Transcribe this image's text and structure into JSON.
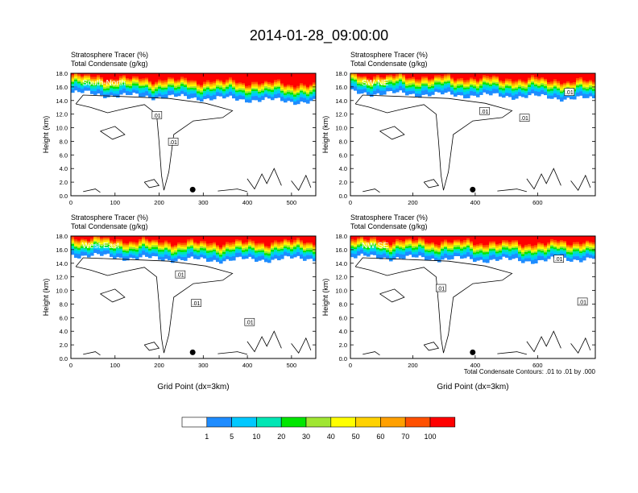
{
  "page_title": "2014-01-28_09:00:00",
  "footnote": "Total Condensate Contours: .01 to .01 by .000",
  "colorbar": {
    "colors": [
      "#ffffff",
      "#1e8cff",
      "#00c8ff",
      "#00e6b4",
      "#00e600",
      "#a0e632",
      "#ffff00",
      "#ffd200",
      "#ffa000",
      "#ff5000",
      "#ff0000"
    ],
    "labels": [
      "1",
      "5",
      "10",
      "20",
      "30",
      "40",
      "50",
      "60",
      "70",
      "100"
    ]
  },
  "chart_data": [
    {
      "type": "heatmap",
      "title_line1": "Stratosphere Tracer   (%)",
      "title_line2": "Total Condensate   (g/kg)",
      "section_label": "South-North",
      "ylabel": "Height (km)",
      "xlabel": "",
      "xlim": [
        0,
        555
      ],
      "ylim": [
        0,
        18
      ],
      "x_ticks": [
        "0",
        "100",
        "200",
        "300",
        "400",
        "500"
      ],
      "x_tick_values": [
        0,
        100,
        200,
        300,
        400,
        500
      ],
      "y_ticks": [
        "0.0",
        "2.0",
        "4.0",
        "6.0",
        "8.0",
        "10.0",
        "12.0",
        "14.0",
        "16.0",
        "18.0"
      ],
      "y_tick_values": [
        0,
        2,
        4,
        6,
        8,
        10,
        12,
        14,
        16,
        18
      ],
      "contour_labels": [
        ".01",
        ".01"
      ],
      "contour_label_positions": [
        [
          195,
          11.8
        ],
        [
          232,
          7.9
        ]
      ],
      "marker_point": [
        276,
        0.9
      ],
      "tracer_base_km": [
        [
          0,
          15.2
        ],
        [
          100,
          14.8
        ],
        [
          200,
          14.6
        ],
        [
          300,
          14.4
        ],
        [
          400,
          14.2
        ],
        [
          555,
          13.8
        ]
      ]
    },
    {
      "type": "heatmap",
      "title_line1": "Stratosphere Tracer   (%)",
      "title_line2": "Total Condensate   (g/kg)",
      "section_label": "SW-NE",
      "ylabel": "Height (km)",
      "xlabel": "",
      "xlim": [
        0,
        785
      ],
      "ylim": [
        0,
        18
      ],
      "x_ticks": [
        "0",
        "200",
        "400",
        "600"
      ],
      "x_tick_values": [
        0,
        200,
        400,
        600
      ],
      "y_ticks": [
        "0.0",
        "2.0",
        "4.0",
        "6.0",
        "8.0",
        "10.0",
        "12.0",
        "14.0",
        "16.0",
        "18.0"
      ],
      "y_tick_values": [
        0,
        2,
        4,
        6,
        8,
        10,
        12,
        14,
        16,
        18
      ],
      "contour_labels": [
        ".01",
        ".01",
        ".01"
      ],
      "contour_label_positions": [
        [
          430,
          12.4
        ],
        [
          558,
          11.4
        ],
        [
          702,
          15.2
        ]
      ],
      "marker_point": [
        392,
        0.9
      ],
      "tracer_base_km": [
        [
          0,
          15.2
        ],
        [
          200,
          15.0
        ],
        [
          400,
          14.8
        ],
        [
          600,
          14.6
        ],
        [
          785,
          14.2
        ]
      ]
    },
    {
      "type": "heatmap",
      "title_line1": "Stratosphere Tracer   (%)",
      "title_line2": "Total Condensate   (g/kg)",
      "section_label": "West-East",
      "ylabel": "Height (km)",
      "xlabel": "Grid Point (dx=3km)",
      "xlim": [
        0,
        555
      ],
      "ylim": [
        0,
        18
      ],
      "x_ticks": [
        "0",
        "100",
        "200",
        "300",
        "400",
        "500"
      ],
      "x_tick_values": [
        0,
        100,
        200,
        300,
        400,
        500
      ],
      "y_ticks": [
        "0.0",
        "2.0",
        "4.0",
        "6.0",
        "8.0",
        "10.0",
        "12.0",
        "14.0",
        "16.0",
        "18.0"
      ],
      "y_tick_values": [
        0,
        2,
        4,
        6,
        8,
        10,
        12,
        14,
        16,
        18
      ],
      "contour_labels": [
        ".01",
        ".01",
        ".01"
      ],
      "contour_label_positions": [
        [
          248,
          12.3
        ],
        [
          284,
          8.1
        ],
        [
          405,
          5.3
        ]
      ],
      "marker_point": [
        276,
        0.9
      ],
      "tracer_base_km": [
        [
          0,
          15.3
        ],
        [
          150,
          14.8
        ],
        [
          300,
          14.5
        ],
        [
          450,
          14.6
        ],
        [
          555,
          14.8
        ]
      ]
    },
    {
      "type": "heatmap",
      "title_line1": "",
      "title_line2": "",
      "title_line1_b": "Stratosphere Tracer   (%)",
      "title_line2_b": "Total Condensate   (g/kg)",
      "section_label": "NW-SE",
      "ylabel": "Height (km)",
      "xlabel": "Grid Point (dx=3km)",
      "xlim": [
        0,
        785
      ],
      "ylim": [
        0,
        18
      ],
      "x_ticks": [
        "0",
        "200",
        "400",
        "600"
      ],
      "x_tick_values": [
        0,
        200,
        400,
        600
      ],
      "y_ticks": [
        "0.0",
        "2.0",
        "4.0",
        "6.0",
        "8.0",
        "10.0",
        "12.0",
        "14.0",
        "16.0",
        "18.0"
      ],
      "y_tick_values": [
        0,
        2,
        4,
        6,
        8,
        10,
        12,
        14,
        16,
        18
      ],
      "contour_labels": [
        ".01",
        ".01",
        ".01"
      ],
      "contour_label_positions": [
        [
          290,
          10.3
        ],
        [
          668,
          14.6
        ],
        [
          744,
          8.3
        ]
      ],
      "marker_point": [
        392,
        0.9
      ],
      "tracer_base_km": [
        [
          0,
          15.0
        ],
        [
          200,
          14.8
        ],
        [
          400,
          14.6
        ],
        [
          600,
          14.4
        ],
        [
          785,
          14.8
        ]
      ]
    }
  ]
}
